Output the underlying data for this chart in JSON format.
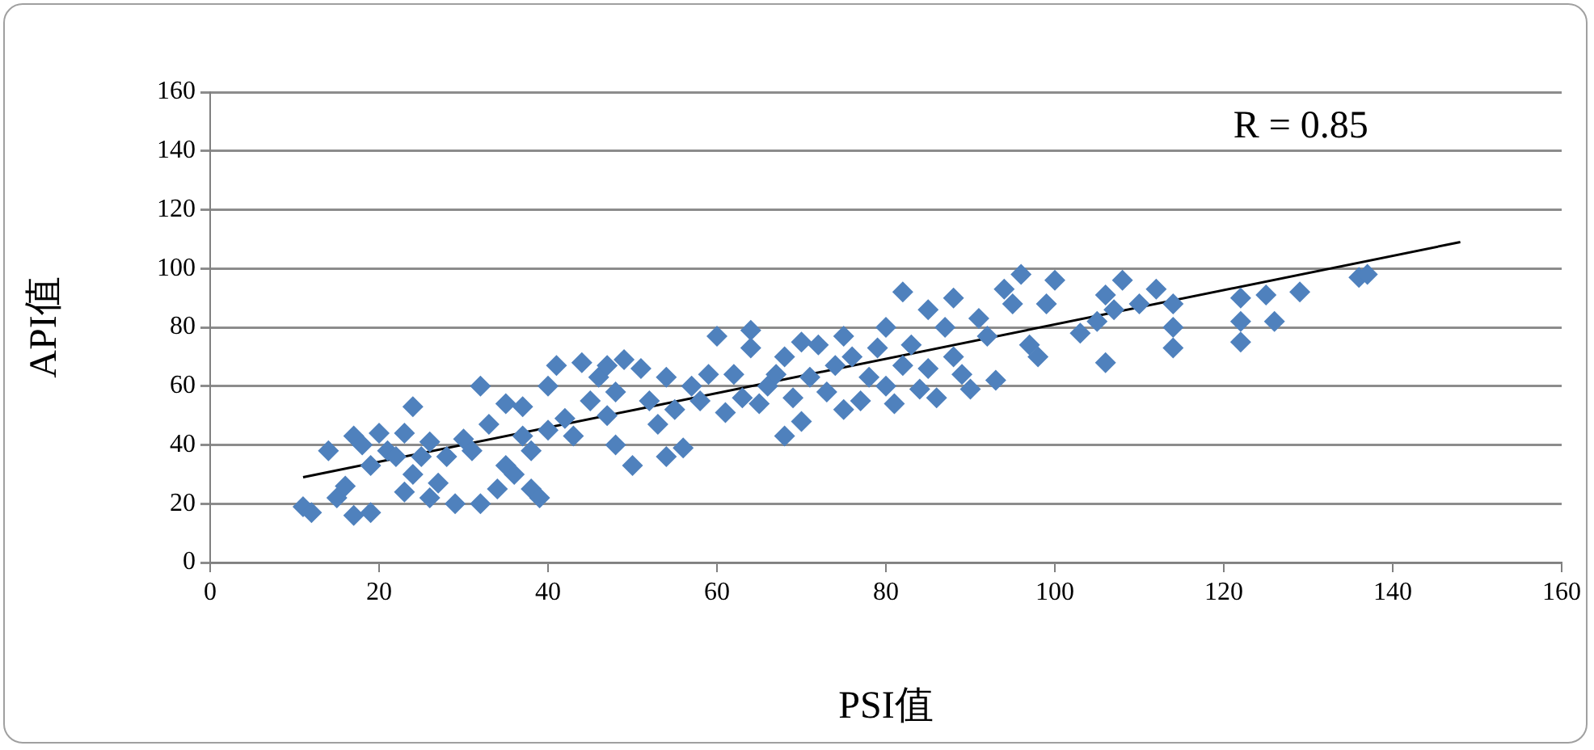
{
  "chart_data": {
    "type": "scatter",
    "xlabel": "PSI值",
    "ylabel": "API值",
    "xlim": [
      0,
      160
    ],
    "xticks": [
      0,
      20,
      40,
      60,
      80,
      100,
      120,
      140,
      160
    ],
    "ylim": [
      0,
      160
    ],
    "yticks": [
      0,
      20,
      40,
      60,
      80,
      100,
      120,
      140,
      160
    ],
    "grid": "y",
    "legend": false,
    "marker": "diamond",
    "annotations": [
      "R = 0.85"
    ],
    "series": [
      {
        "color": "#4f81bd",
        "x": [
          11,
          12,
          14,
          15,
          16,
          17,
          17,
          18,
          19,
          19,
          20,
          21,
          22,
          23,
          23,
          24,
          24,
          25,
          26,
          26,
          27,
          28,
          29,
          30,
          31,
          32,
          32,
          33,
          34,
          35,
          35,
          36,
          37,
          37,
          38,
          38,
          39,
          40,
          40,
          41,
          42,
          43,
          44,
          45,
          46,
          47,
          47,
          48,
          48,
          49,
          50,
          51,
          52,
          53,
          54,
          54,
          55,
          56,
          57,
          58,
          59,
          60,
          61,
          62,
          63,
          64,
          64,
          65,
          66,
          67,
          68,
          68,
          69,
          70,
          70,
          71,
          72,
          73,
          74,
          75,
          75,
          76,
          77,
          78,
          79,
          80,
          80,
          81,
          82,
          82,
          83,
          84,
          85,
          85,
          86,
          87,
          88,
          88,
          89,
          90,
          91,
          92,
          93,
          94,
          95,
          96,
          97,
          98,
          99,
          100,
          103,
          105,
          106,
          106,
          107,
          108,
          110,
          112,
          114,
          114,
          114,
          122,
          122,
          122,
          125,
          126,
          129,
          136,
          137
        ],
        "values": [
          19,
          17,
          38,
          22,
          26,
          16,
          43,
          40,
          17,
          33,
          44,
          38,
          36,
          24,
          44,
          53,
          30,
          36,
          41,
          22,
          27,
          36,
          20,
          42,
          38,
          60,
          20,
          47,
          25,
          54,
          33,
          30,
          43,
          53,
          25,
          38,
          22,
          45,
          60,
          67,
          49,
          43,
          68,
          55,
          63,
          67,
          50,
          40,
          58,
          69,
          33,
          66,
          55,
          47,
          63,
          36,
          52,
          39,
          60,
          55,
          64,
          77,
          51,
          64,
          56,
          79,
          73,
          54,
          60,
          64,
          43,
          70,
          56,
          75,
          48,
          63,
          74,
          58,
          67,
          52,
          77,
          70,
          55,
          63,
          73,
          60,
          80,
          54,
          92,
          67,
          74,
          59,
          86,
          66,
          56,
          80,
          70,
          90,
          64,
          59,
          83,
          77,
          62,
          93,
          88,
          98,
          74,
          70,
          88,
          96,
          78,
          82,
          91,
          68,
          86,
          96,
          88,
          93,
          88,
          80,
          73,
          90,
          82,
          75,
          91,
          82,
          92,
          97,
          98
        ]
      },
      {
        "type": "line",
        "color": "#000000",
        "x": [
          11,
          148
        ],
        "values": [
          29,
          109
        ],
        "marker": "none"
      }
    ]
  }
}
